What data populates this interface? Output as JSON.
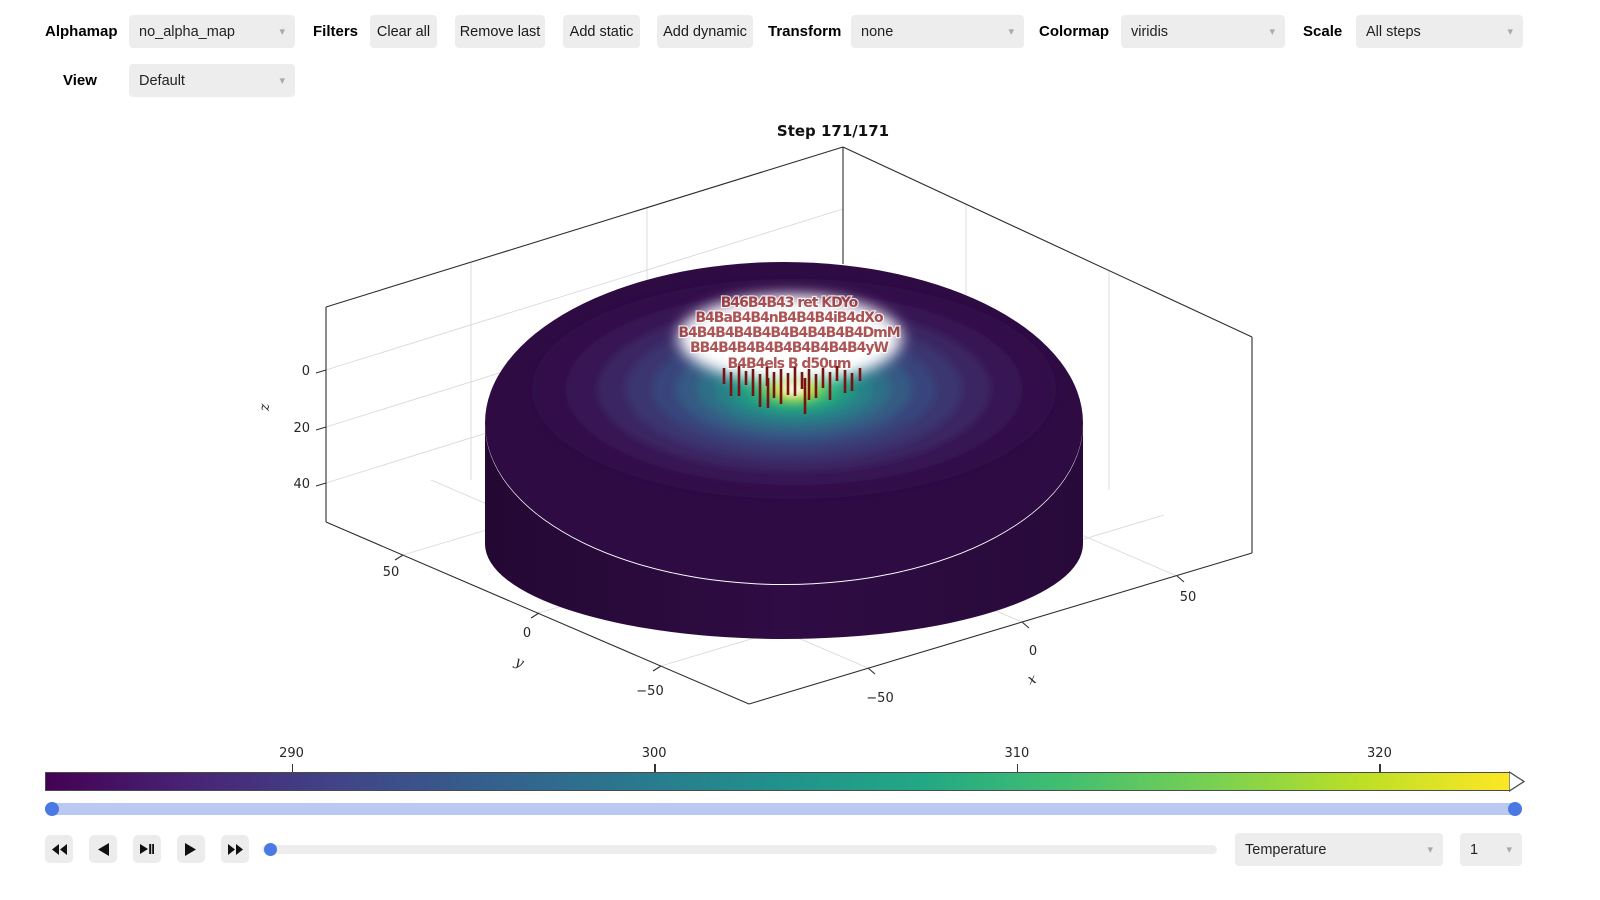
{
  "toolbar": {
    "alphamap_label": "Alphamap",
    "alphamap_value": "no_alpha_map",
    "filters_label": "Filters",
    "filter_buttons": [
      "Clear all",
      "Remove last",
      "Add static",
      "Add dynamic"
    ],
    "transform_label": "Transform",
    "transform_value": "none",
    "colormap_label": "Colormap",
    "colormap_value": "viridis",
    "scale_label": "Scale",
    "scale_value": "All steps",
    "view_label": "View",
    "view_value": "Default"
  },
  "chart_data": {
    "type": "surface3d",
    "title": "Step 171/171",
    "step_current": 171,
    "step_total": 171,
    "xlabel": "x",
    "ylabel": "y",
    "zlabel": "z",
    "x_tick_labels": [
      "−50",
      "0",
      "50"
    ],
    "y_tick_labels": [
      "50",
      "0",
      "−50"
    ],
    "z_tick_labels": [
      "0",
      "20",
      "40"
    ],
    "colormap": "viridis",
    "shape": "cylinder with hot spot on top center",
    "sensor_label_rows": [
      [
        307,
        "B46B4B43 ret KDYo"
      ],
      [
        322,
        "B4BaB4B4nB4B4B4iB4dXo"
      ],
      [
        337,
        "B4B4B4B4B4B4B4B4B4B4DmM"
      ],
      [
        352,
        "BB4B4B4B4B4B4B4B4B4yW"
      ],
      [
        368,
        "B4B4els B d50um"
      ]
    ],
    "droplines": [
      [
        724,
        368,
        16
      ],
      [
        731,
        372,
        24
      ],
      [
        739,
        366,
        30
      ],
      [
        746,
        371,
        14
      ],
      [
        753,
        369,
        27
      ],
      [
        760,
        374,
        33
      ],
      [
        767,
        367,
        19
      ],
      [
        774,
        372,
        26
      ],
      [
        781,
        369,
        35
      ],
      [
        788,
        373,
        22
      ],
      [
        795,
        367,
        29
      ],
      [
        802,
        372,
        17
      ],
      [
        809,
        369,
        31
      ],
      [
        816,
        374,
        24
      ],
      [
        823,
        368,
        20
      ],
      [
        830,
        372,
        28
      ],
      [
        837,
        366,
        15
      ],
      [
        845,
        370,
        23
      ],
      [
        852,
        373,
        18
      ],
      [
        860,
        368,
        13
      ],
      [
        805,
        378,
        36
      ],
      [
        768,
        378,
        30
      ]
    ],
    "colorbar": {
      "ticks": [
        290,
        300,
        310,
        320
      ],
      "value_range": [
        283.2,
        323.6
      ],
      "colors": [
        "#440154",
        "#482475",
        "#414487",
        "#355f8d",
        "#2a788e",
        "#21918c",
        "#22a884",
        "#44bf70",
        "#7ad151",
        "#bddf26",
        "#fde725"
      ]
    }
  },
  "playback": {
    "rewind": "rewind",
    "step_back": "step back",
    "play_pause": "play/pause",
    "play": "play",
    "fast_forward": "fast forward"
  },
  "bottom": {
    "field_value": "Temperature",
    "count_value": "1"
  },
  "colors": {
    "accent_blue": "#4b79e4",
    "slider_track_blue": "#b9c9f2",
    "control_bg": "#ededed",
    "dropline_red": "#7a1111",
    "label_red": "#9c3131"
  }
}
